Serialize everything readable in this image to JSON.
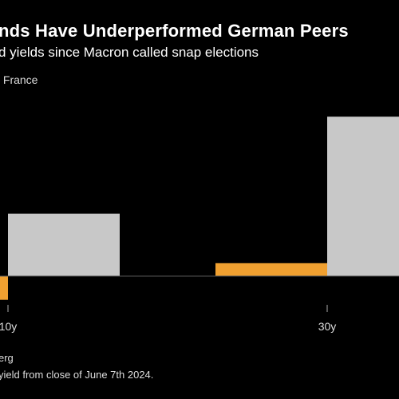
{
  "header": {
    "title": "nds Have Underperformed German Peers",
    "subtitle": "d yields since Macron called snap elections"
  },
  "legend": {
    "items": [
      {
        "label": "France",
        "color": "#c8c8c8"
      }
    ]
  },
  "footer": {
    "source": "erg",
    "note": "yield from close of June 7th 2024."
  },
  "colors": {
    "france": "#c8c8c8",
    "germany": "#f0a030",
    "background": "#000000"
  },
  "chart_data": {
    "type": "bar",
    "title": "nds Have Underperformed German Peers",
    "subtitle": "d yields since Macron called snap elections",
    "categories": [
      "10y",
      "30y"
    ],
    "series": [
      {
        "name": "France",
        "values": [
          29,
          74
        ]
      },
      {
        "values": [
          -11,
          6
        ]
      }
    ],
    "ylim": [
      -20,
      80
    ],
    "grid": false,
    "legend_position": "top-left"
  }
}
